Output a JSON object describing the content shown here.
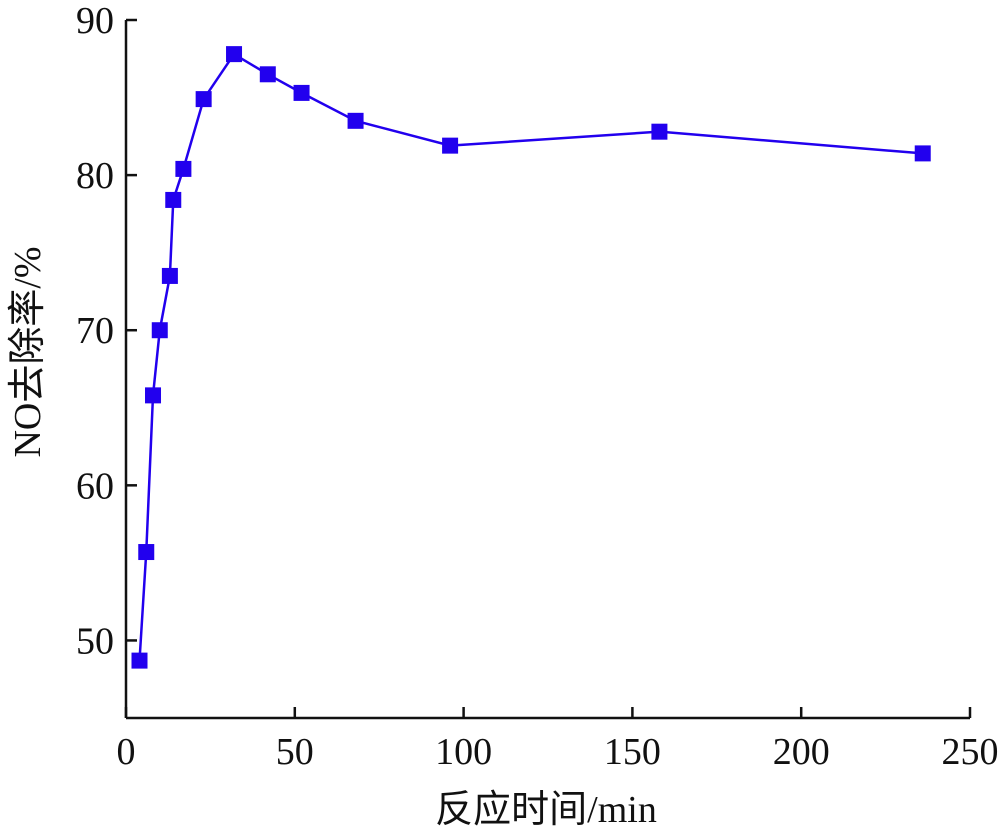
{
  "chart_data": {
    "type": "line",
    "title": "",
    "xlabel": "反应时间/min",
    "ylabel": "NO去除率/%",
    "xlim": [
      0,
      250
    ],
    "ylim": [
      45,
      90
    ],
    "xticks": [
      0,
      50,
      100,
      150,
      200,
      250
    ],
    "yticks": [
      50,
      60,
      70,
      80,
      90
    ],
    "grid": false,
    "series_color": "#2200ee",
    "marker": "square",
    "series": [
      {
        "x": [
          4,
          6,
          8,
          10,
          13,
          14,
          17,
          23,
          32,
          42,
          52,
          68,
          96,
          158,
          236
        ],
        "y": [
          48.7,
          55.7,
          65.8,
          70.0,
          73.5,
          78.4,
          80.4,
          84.9,
          87.8,
          86.5,
          85.3,
          83.5,
          81.9,
          82.8,
          81.4
        ]
      }
    ]
  }
}
